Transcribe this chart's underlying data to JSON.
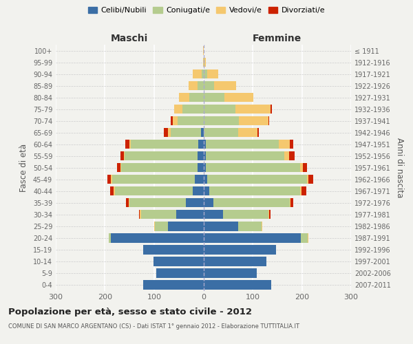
{
  "age_groups": [
    "100+",
    "95-99",
    "90-94",
    "85-89",
    "80-84",
    "75-79",
    "70-74",
    "65-69",
    "60-64",
    "55-59",
    "50-54",
    "45-49",
    "40-44",
    "35-39",
    "30-34",
    "25-29",
    "20-24",
    "15-19",
    "10-14",
    "5-9",
    "0-4"
  ],
  "birth_years": [
    "≤ 1911",
    "1912-1916",
    "1917-1921",
    "1922-1926",
    "1927-1931",
    "1932-1936",
    "1937-1941",
    "1942-1946",
    "1947-1951",
    "1952-1956",
    "1957-1961",
    "1962-1966",
    "1967-1971",
    "1972-1976",
    "1977-1981",
    "1982-1986",
    "1987-1991",
    "1992-1996",
    "1997-2001",
    "2002-2006",
    "2007-2011"
  ],
  "colors": {
    "celibi": "#3B6EA5",
    "coniugati": "#B5CC8E",
    "vedovi": "#F5C86E",
    "divorziati": "#CC2200"
  },
  "males": {
    "celibi": [
      0,
      0,
      0,
      0,
      0,
      0,
      0,
      5,
      10,
      12,
      12,
      18,
      22,
      35,
      55,
      72,
      188,
      122,
      102,
      96,
      122
    ],
    "coniugati": [
      0,
      0,
      4,
      12,
      28,
      42,
      52,
      62,
      138,
      148,
      155,
      168,
      158,
      115,
      72,
      27,
      4,
      0,
      0,
      0,
      0
    ],
    "vedovi": [
      1,
      1,
      18,
      18,
      22,
      18,
      10,
      5,
      2,
      2,
      2,
      2,
      2,
      2,
      2,
      1,
      1,
      0,
      0,
      0,
      0
    ],
    "divorziati": [
      0,
      0,
      0,
      0,
      0,
      0,
      5,
      8,
      9,
      7,
      7,
      7,
      7,
      5,
      2,
      0,
      0,
      0,
      0,
      0,
      0
    ]
  },
  "females": {
    "celibi": [
      0,
      0,
      0,
      0,
      0,
      0,
      0,
      0,
      5,
      5,
      5,
      8,
      12,
      20,
      40,
      70,
      198,
      148,
      128,
      108,
      138
    ],
    "coniugati": [
      0,
      2,
      8,
      22,
      42,
      65,
      72,
      70,
      148,
      160,
      192,
      202,
      185,
      155,
      92,
      48,
      14,
      0,
      0,
      0,
      0
    ],
    "vedovi": [
      1,
      3,
      22,
      45,
      60,
      72,
      60,
      40,
      22,
      9,
      5,
      3,
      2,
      2,
      2,
      1,
      1,
      0,
      0,
      0,
      0
    ],
    "divorziati": [
      0,
      0,
      0,
      0,
      0,
      2,
      2,
      3,
      8,
      12,
      8,
      10,
      10,
      5,
      2,
      0,
      0,
      0,
      0,
      0,
      0
    ]
  },
  "title": "Popolazione per età, sesso e stato civile - 2012",
  "subtitle": "COMUNE DI SAN MARCO ARGENTANO (CS) - Dati ISTAT 1° gennaio 2012 - Elaborazione TUTTITALIA.IT",
  "xlabel_left": "Maschi",
  "xlabel_right": "Femmine",
  "ylabel_left": "Fasce di età",
  "ylabel_right": "Anni di nascita",
  "xlim": 300,
  "bg_color": "#F2F2EE",
  "legend_labels": [
    "Celibi/Nubili",
    "Coniugati/e",
    "Vedovi/e",
    "Divorziati/e"
  ]
}
